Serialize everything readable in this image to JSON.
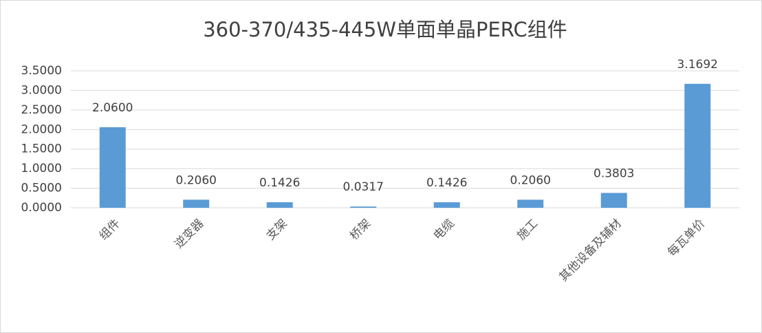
{
  "chart_data": {
    "type": "bar",
    "title": "360-370/435-445W单面单晶PERC组件",
    "categories": [
      "组件",
      "逆变器",
      "支架",
      "桥架",
      "电缆",
      "施工",
      "其他设备及辅材",
      "每瓦单价"
    ],
    "values": [
      2.06,
      0.206,
      0.1426,
      0.0317,
      0.1426,
      0.206,
      0.3803,
      3.1692
    ],
    "value_labels": [
      "2.0600",
      "0.2060",
      "0.1426",
      "0.0317",
      "0.1426",
      "0.2060",
      "0.3803",
      "3.1692"
    ],
    "color": "#5b9bd5",
    "ylim": [
      0,
      3.5
    ],
    "yticks": [
      {
        "value": 0,
        "label": "0.0000"
      },
      {
        "value": 0.5,
        "label": "0.5000"
      },
      {
        "value": 1,
        "label": "1.0000"
      },
      {
        "value": 1.5,
        "label": "1.5000"
      },
      {
        "value": 2,
        "label": "2.0000"
      },
      {
        "value": 2.5,
        "label": "2.5000"
      },
      {
        "value": 3,
        "label": "3.0000"
      },
      {
        "value": 3.5,
        "label": "3.5000"
      }
    ],
    "grid": true
  }
}
